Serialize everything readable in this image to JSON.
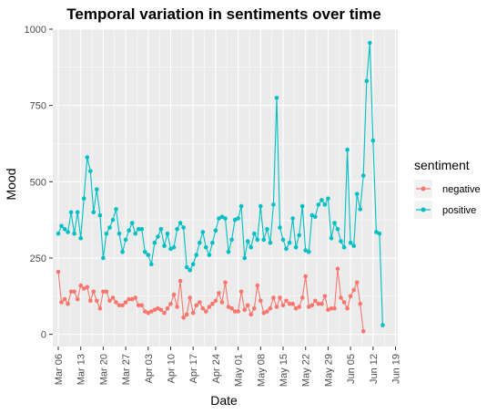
{
  "chart_data": {
    "type": "line",
    "title": "Temporal variation in sentiments over time",
    "xlabel": "Date",
    "ylabel": "Mood",
    "ylim": [
      -40,
      1000
    ],
    "yticks": [
      0,
      250,
      500,
      750,
      1000
    ],
    "x_start": "2020-03-06",
    "x_end": "2020-06-19",
    "xticks": [
      "Mar 06",
      "Mar 13",
      "Mar 20",
      "Mar 27",
      "Apr 03",
      "Apr 10",
      "Apr 17",
      "Apr 24",
      "May 01",
      "May 08",
      "May 15",
      "May 22",
      "May 29",
      "Jun 05",
      "Jun 12",
      "Jun 19"
    ],
    "grid": true,
    "legend": {
      "title": "sentiment",
      "position": "right"
    },
    "series": [
      {
        "name": "negative",
        "color": "#F8766D",
        "values": [
          205,
          105,
          115,
          100,
          140,
          140,
          115,
          160,
          150,
          155,
          110,
          140,
          110,
          85,
          140,
          140,
          110,
          120,
          105,
          95,
          95,
          105,
          115,
          115,
          120,
          95,
          95,
          75,
          70,
          75,
          80,
          85,
          80,
          70,
          85,
          100,
          130,
          90,
          175,
          55,
          65,
          120,
          70,
          95,
          105,
          85,
          75,
          90,
          100,
          110,
          135,
          105,
          170,
          90,
          85,
          75,
          75,
          140,
          80,
          95,
          65,
          85,
          160,
          110,
          70,
          75,
          85,
          120,
          90,
          120,
          95,
          110,
          100,
          100,
          85,
          90,
          120,
          190,
          90,
          95,
          110,
          100,
          100,
          125,
          80,
          85,
          85,
          215,
          120,
          105,
          85,
          125,
          145,
          170,
          100,
          10
        ],
        "start": "2020-03-06"
      },
      {
        "name": "positive",
        "color": "#00BFC4",
        "values": [
          330,
          355,
          345,
          335,
          400,
          330,
          400,
          315,
          445,
          580,
          535,
          400,
          475,
          390,
          250,
          330,
          350,
          375,
          410,
          330,
          270,
          310,
          340,
          365,
          330,
          345,
          345,
          270,
          260,
          230,
          300,
          320,
          345,
          290,
          330,
          280,
          285,
          345,
          365,
          350,
          220,
          210,
          230,
          260,
          300,
          335,
          285,
          260,
          300,
          340,
          380,
          385,
          380,
          270,
          310,
          375,
          380,
          420,
          250,
          305,
          285,
          330,
          310,
          420,
          310,
          345,
          300,
          425,
          775,
          350,
          310,
          280,
          300,
          380,
          285,
          325,
          420,
          275,
          270,
          390,
          385,
          425,
          440,
          425,
          445,
          315,
          365,
          345,
          305,
          285,
          605,
          300,
          290,
          460,
          410,
          520,
          830,
          955,
          635,
          335,
          330,
          30
        ],
        "start": "2020-03-06"
      }
    ]
  }
}
